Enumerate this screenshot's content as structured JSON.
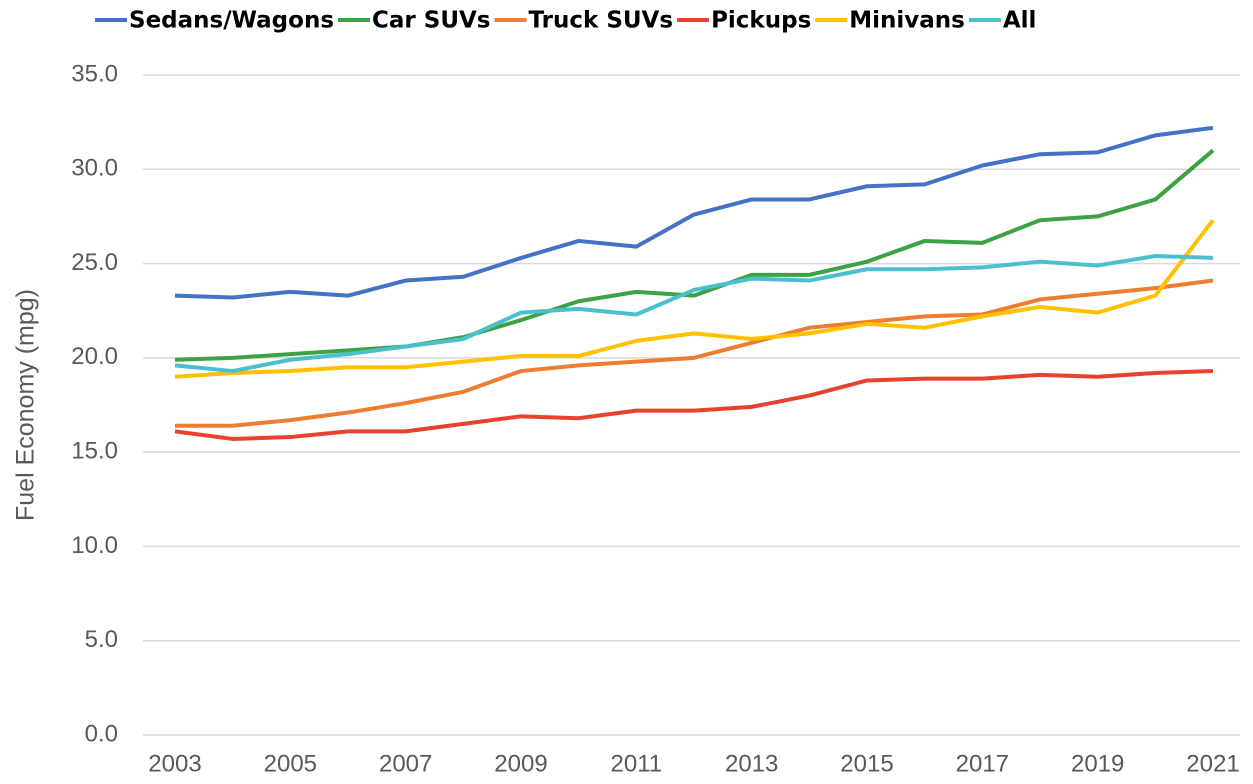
{
  "chart_data": {
    "type": "line",
    "y_label": "Fuel Economy (mpg)",
    "x": [
      2003,
      2004,
      2005,
      2006,
      2007,
      2008,
      2009,
      2010,
      2011,
      2012,
      2013,
      2014,
      2015,
      2016,
      2017,
      2018,
      2019,
      2020,
      2021
    ],
    "xlim": [
      2003,
      2021
    ],
    "xticks": [
      2003,
      2005,
      2007,
      2009,
      2011,
      2013,
      2015,
      2017,
      2019,
      2021
    ],
    "ylim": [
      0,
      35
    ],
    "yticks": [
      {
        "value": 0,
        "label": "0.0"
      },
      {
        "value": 5,
        "label": "5.0"
      },
      {
        "value": 10,
        "label": "10.0"
      },
      {
        "value": 15,
        "label": "15.0"
      },
      {
        "value": 20,
        "label": "20.0"
      },
      {
        "value": 25,
        "label": "25.0"
      },
      {
        "value": 30,
        "label": "30.0"
      },
      {
        "value": 35,
        "label": "35.0"
      }
    ],
    "grid": true,
    "legend": "top",
    "series": [
      {
        "name": "Sedans/Wagons",
        "color": "#4472c4",
        "values": [
          23.3,
          23.2,
          23.5,
          23.3,
          24.1,
          24.3,
          25.3,
          26.2,
          25.9,
          27.6,
          28.4,
          28.4,
          29.1,
          29.2,
          30.2,
          30.8,
          30.9,
          31.8,
          32.2
        ]
      },
      {
        "name": "Car SUVs",
        "color": "#3ca244",
        "values": [
          19.9,
          20.0,
          20.2,
          20.4,
          20.6,
          21.1,
          22.0,
          23.0,
          23.5,
          23.3,
          24.4,
          24.4,
          25.1,
          26.2,
          26.1,
          27.3,
          27.5,
          28.4,
          31.0
        ]
      },
      {
        "name": "Truck SUVs",
        "color": "#ed7d31",
        "values": [
          16.4,
          16.4,
          16.7,
          17.1,
          17.6,
          18.2,
          19.3,
          19.6,
          19.8,
          20.0,
          20.8,
          21.6,
          21.9,
          22.2,
          22.3,
          23.1,
          23.4,
          23.7,
          24.1
        ]
      },
      {
        "name": "Pickups",
        "color": "#e8412d",
        "values": [
          16.1,
          15.7,
          15.8,
          16.1,
          16.1,
          16.5,
          16.9,
          16.8,
          17.2,
          17.2,
          17.4,
          18.0,
          18.8,
          18.9,
          18.9,
          19.1,
          19.0,
          19.2,
          19.3
        ]
      },
      {
        "name": "Minivans",
        "color": "#ffc000",
        "values": [
          19.0,
          19.2,
          19.3,
          19.5,
          19.5,
          19.8,
          20.1,
          20.1,
          20.9,
          21.3,
          21.0,
          21.3,
          21.8,
          21.6,
          22.2,
          22.7,
          22.4,
          23.3,
          27.3
        ]
      },
      {
        "name": "All",
        "color": "#4bbfcd",
        "values": [
          19.6,
          19.3,
          19.9,
          20.2,
          20.6,
          21.0,
          22.4,
          22.6,
          22.3,
          23.6,
          24.2,
          24.1,
          24.7,
          24.7,
          24.8,
          25.1,
          24.9,
          25.4,
          25.3
        ]
      }
    ]
  }
}
